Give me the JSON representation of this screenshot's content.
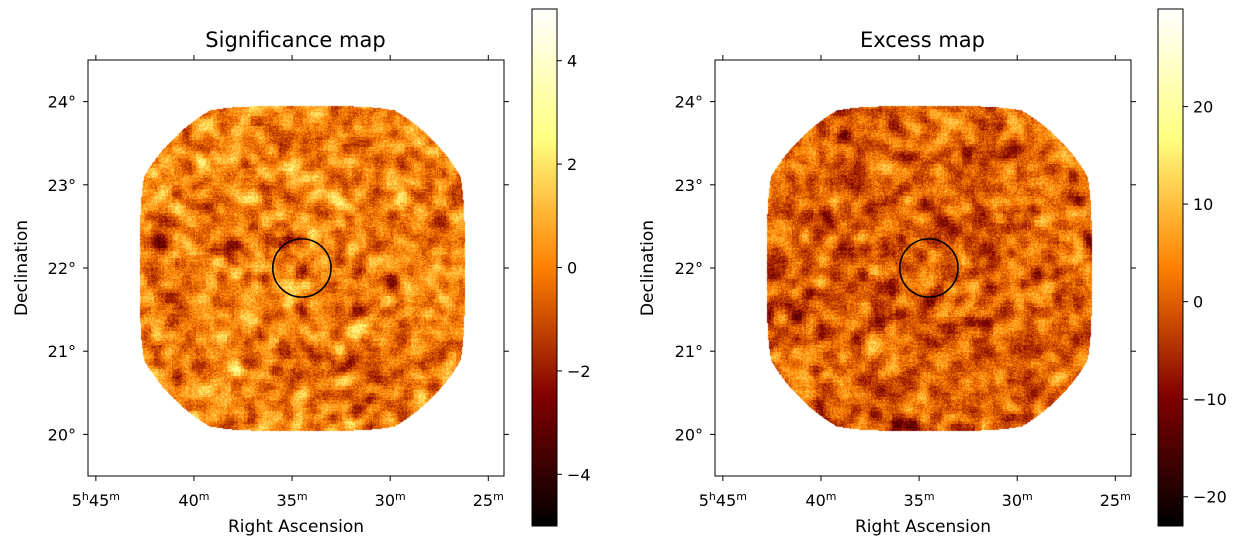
{
  "chart_data": [
    {
      "type": "heatmap",
      "title": "Significance map",
      "xlabel": "Right Ascension",
      "ylabel": "Declination",
      "x_ticks": [
        {
          "major": "5",
          "h": "h",
          "minor": "45",
          "m": "m"
        },
        {
          "major": "40",
          "h": "",
          "minor": "",
          "m": "m"
        },
        {
          "major": "35",
          "h": "",
          "minor": "",
          "m": "m"
        },
        {
          "major": "30",
          "h": "",
          "minor": "",
          "m": "m"
        },
        {
          "major": "25",
          "h": "",
          "minor": "",
          "m": "m"
        }
      ],
      "y_ticks": [
        "24°",
        "23°",
        "22°",
        "21°",
        "20°"
      ],
      "y_values": [
        24,
        23,
        22,
        21,
        20
      ],
      "ra_minutes": [
        45,
        40,
        35,
        30,
        25
      ],
      "xlim_ra_minutes": [
        45.4,
        24.2
      ],
      "ylim_deg": [
        19.5,
        24.5
      ],
      "footprint": {
        "center_ra_minutes": 34.5,
        "center_dec_deg": 22.0,
        "radius_deg": 2.2
      },
      "circle": {
        "center_ra_minutes": 34.5,
        "center_dec_deg": 22.0,
        "radius_deg": 0.35
      },
      "colormap": "afmhot",
      "vmin": -5.0,
      "vmax": 5.0,
      "colorbar_ticks": [
        4,
        2,
        0,
        -2,
        -4
      ],
      "colorbar_tick_labels": [
        "4",
        "2",
        "0",
        "−2",
        "−4"
      ],
      "seed": 11,
      "bias": 0.0
    },
    {
      "type": "heatmap",
      "title": "Excess map",
      "xlabel": "Right Ascension",
      "ylabel": "Declination",
      "x_ticks": [
        {
          "major": "5",
          "h": "h",
          "minor": "45",
          "m": "m"
        },
        {
          "major": "40",
          "h": "",
          "minor": "",
          "m": "m"
        },
        {
          "major": "35",
          "h": "",
          "minor": "",
          "m": "m"
        },
        {
          "major": "30",
          "h": "",
          "minor": "",
          "m": "m"
        },
        {
          "major": "25",
          "h": "",
          "minor": "",
          "m": "m"
        }
      ],
      "y_ticks": [
        "24°",
        "23°",
        "22°",
        "21°",
        "20°"
      ],
      "y_values": [
        24,
        23,
        22,
        21,
        20
      ],
      "ra_minutes": [
        45,
        40,
        35,
        30,
        25
      ],
      "xlim_ra_minutes": [
        45.4,
        24.2
      ],
      "ylim_deg": [
        19.5,
        24.5
      ],
      "footprint": {
        "center_ra_minutes": 34.5,
        "center_dec_deg": 22.0,
        "radius_deg": 2.2
      },
      "circle": {
        "center_ra_minutes": 34.5,
        "center_dec_deg": 22.0,
        "radius_deg": 0.35
      },
      "colormap": "afmhot",
      "vmin": -23.0,
      "vmax": 30.0,
      "colorbar_ticks": [
        20,
        10,
        0,
        -10,
        -20
      ],
      "colorbar_tick_labels": [
        "20",
        "10",
        "0",
        "−10",
        "−20"
      ],
      "seed": 29,
      "bias": 0.0
    }
  ]
}
